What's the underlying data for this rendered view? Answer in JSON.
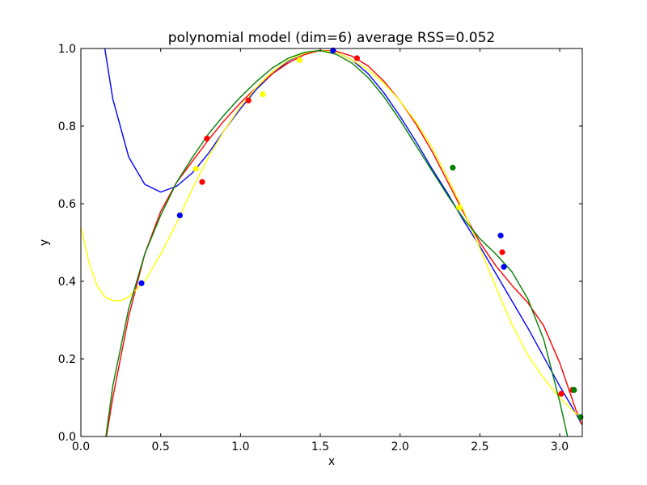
{
  "chart_data": {
    "type": "scatter",
    "title": "polynomial model (dim=6) average RSS=0.052",
    "xlabel": "x",
    "ylabel": "y",
    "xlim": [
      0.0,
      3.14159
    ],
    "ylim": [
      0.0,
      1.0
    ],
    "xticks": [
      "0.0",
      "0.5",
      "1.0",
      "1.5",
      "2.0",
      "2.5",
      "3.0"
    ],
    "yticks": [
      "0.0",
      "0.2",
      "0.4",
      "0.6",
      "0.8",
      "1.0"
    ],
    "grid": false,
    "legend": "none",
    "series": [
      {
        "color": "#0000ff",
        "points": [
          [
            0.38,
            0.395
          ],
          [
            0.62,
            0.57
          ],
          [
            1.58,
            0.995
          ],
          [
            2.63,
            0.518
          ],
          [
            2.65,
            0.437
          ],
          [
            3.13,
            0.05
          ]
        ],
        "curve": [
          [
            0.1,
            1.25
          ],
          [
            0.15,
            1.0
          ],
          [
            0.2,
            0.87
          ],
          [
            0.3,
            0.72
          ],
          [
            0.4,
            0.65
          ],
          [
            0.5,
            0.63
          ],
          [
            0.6,
            0.645
          ],
          [
            0.7,
            0.68
          ],
          [
            0.8,
            0.73
          ],
          [
            0.9,
            0.79
          ],
          [
            1.0,
            0.845
          ],
          [
            1.1,
            0.895
          ],
          [
            1.2,
            0.935
          ],
          [
            1.3,
            0.968
          ],
          [
            1.4,
            0.988
          ],
          [
            1.5,
            0.995
          ],
          [
            1.6,
            0.99
          ],
          [
            1.7,
            0.97
          ],
          [
            1.8,
            0.935
          ],
          [
            1.9,
            0.885
          ],
          [
            2.0,
            0.825
          ],
          [
            2.1,
            0.76
          ],
          [
            2.2,
            0.69
          ],
          [
            2.3,
            0.625
          ],
          [
            2.4,
            0.555
          ],
          [
            2.5,
            0.49
          ],
          [
            2.6,
            0.42
          ],
          [
            2.7,
            0.35
          ],
          [
            2.8,
            0.28
          ],
          [
            2.9,
            0.205
          ],
          [
            3.0,
            0.13
          ],
          [
            3.1,
            0.06
          ],
          [
            3.14,
            0.03
          ]
        ]
      },
      {
        "color": "#ff0000",
        "points": [
          [
            0.76,
            0.656
          ],
          [
            0.79,
            0.768
          ],
          [
            1.05,
            0.866
          ],
          [
            1.73,
            0.975
          ],
          [
            2.64,
            0.475
          ],
          [
            3.01,
            0.11
          ],
          [
            3.08,
            0.12
          ]
        ],
        "curve": [
          [
            0.14,
            -0.05
          ],
          [
            0.2,
            0.1
          ],
          [
            0.3,
            0.31
          ],
          [
            0.4,
            0.47
          ],
          [
            0.5,
            0.58
          ],
          [
            0.6,
            0.655
          ],
          [
            0.7,
            0.71
          ],
          [
            0.8,
            0.765
          ],
          [
            0.9,
            0.815
          ],
          [
            1.0,
            0.86
          ],
          [
            1.1,
            0.9
          ],
          [
            1.2,
            0.935
          ],
          [
            1.3,
            0.963
          ],
          [
            1.4,
            0.984
          ],
          [
            1.5,
            0.995
          ],
          [
            1.6,
            0.993
          ],
          [
            1.7,
            0.98
          ],
          [
            1.8,
            0.955
          ],
          [
            1.9,
            0.915
          ],
          [
            2.0,
            0.865
          ],
          [
            2.1,
            0.805
          ],
          [
            2.2,
            0.735
          ],
          [
            2.3,
            0.655
          ],
          [
            2.4,
            0.575
          ],
          [
            2.5,
            0.5
          ],
          [
            2.6,
            0.44
          ],
          [
            2.7,
            0.39
          ],
          [
            2.8,
            0.345
          ],
          [
            2.9,
            0.285
          ],
          [
            3.0,
            0.19
          ],
          [
            3.05,
            0.13
          ],
          [
            3.1,
            0.07
          ],
          [
            3.14,
            0.03
          ]
        ]
      },
      {
        "color": "#ffff00",
        "points": [
          [
            0.72,
            0.69
          ],
          [
            1.14,
            0.882
          ],
          [
            1.37,
            0.97
          ],
          [
            2.37,
            0.59
          ]
        ],
        "curve": [
          [
            0.0,
            0.54
          ],
          [
            0.05,
            0.45
          ],
          [
            0.1,
            0.39
          ],
          [
            0.15,
            0.36
          ],
          [
            0.2,
            0.35
          ],
          [
            0.25,
            0.35
          ],
          [
            0.3,
            0.36
          ],
          [
            0.4,
            0.4
          ],
          [
            0.5,
            0.47
          ],
          [
            0.6,
            0.55
          ],
          [
            0.7,
            0.64
          ],
          [
            0.8,
            0.72
          ],
          [
            0.9,
            0.79
          ],
          [
            1.0,
            0.85
          ],
          [
            1.1,
            0.9
          ],
          [
            1.2,
            0.94
          ],
          [
            1.3,
            0.97
          ],
          [
            1.4,
            0.988
          ],
          [
            1.5,
            0.995
          ],
          [
            1.6,
            0.99
          ],
          [
            1.7,
            0.97
          ],
          [
            1.8,
            0.945
          ],
          [
            1.9,
            0.91
          ],
          [
            2.0,
            0.865
          ],
          [
            2.1,
            0.81
          ],
          [
            2.2,
            0.745
          ],
          [
            2.3,
            0.665
          ],
          [
            2.4,
            0.58
          ],
          [
            2.5,
            0.485
          ],
          [
            2.6,
            0.385
          ],
          [
            2.7,
            0.29
          ],
          [
            2.8,
            0.21
          ],
          [
            2.9,
            0.15
          ],
          [
            3.0,
            0.1
          ],
          [
            3.1,
            0.06
          ],
          [
            3.14,
            0.045
          ]
        ]
      },
      {
        "color": "#008000",
        "points": [
          [
            2.33,
            0.693
          ],
          [
            3.09,
            0.12
          ],
          [
            3.13,
            0.05
          ]
        ],
        "curve": [
          [
            0.15,
            -0.02
          ],
          [
            0.2,
            0.13
          ],
          [
            0.3,
            0.33
          ],
          [
            0.4,
            0.47
          ],
          [
            0.5,
            0.57
          ],
          [
            0.6,
            0.655
          ],
          [
            0.7,
            0.72
          ],
          [
            0.8,
            0.78
          ],
          [
            0.9,
            0.83
          ],
          [
            1.0,
            0.875
          ],
          [
            1.1,
            0.915
          ],
          [
            1.2,
            0.95
          ],
          [
            1.3,
            0.975
          ],
          [
            1.4,
            0.99
          ],
          [
            1.5,
            0.995
          ],
          [
            1.6,
            0.985
          ],
          [
            1.7,
            0.962
          ],
          [
            1.8,
            0.925
          ],
          [
            1.9,
            0.875
          ],
          [
            2.0,
            0.815
          ],
          [
            2.1,
            0.75
          ],
          [
            2.2,
            0.685
          ],
          [
            2.3,
            0.62
          ],
          [
            2.4,
            0.56
          ],
          [
            2.5,
            0.51
          ],
          [
            2.6,
            0.47
          ],
          [
            2.7,
            0.425
          ],
          [
            2.8,
            0.355
          ],
          [
            2.9,
            0.25
          ],
          [
            3.0,
            0.09
          ],
          [
            3.06,
            -0.02
          ]
        ]
      }
    ]
  }
}
